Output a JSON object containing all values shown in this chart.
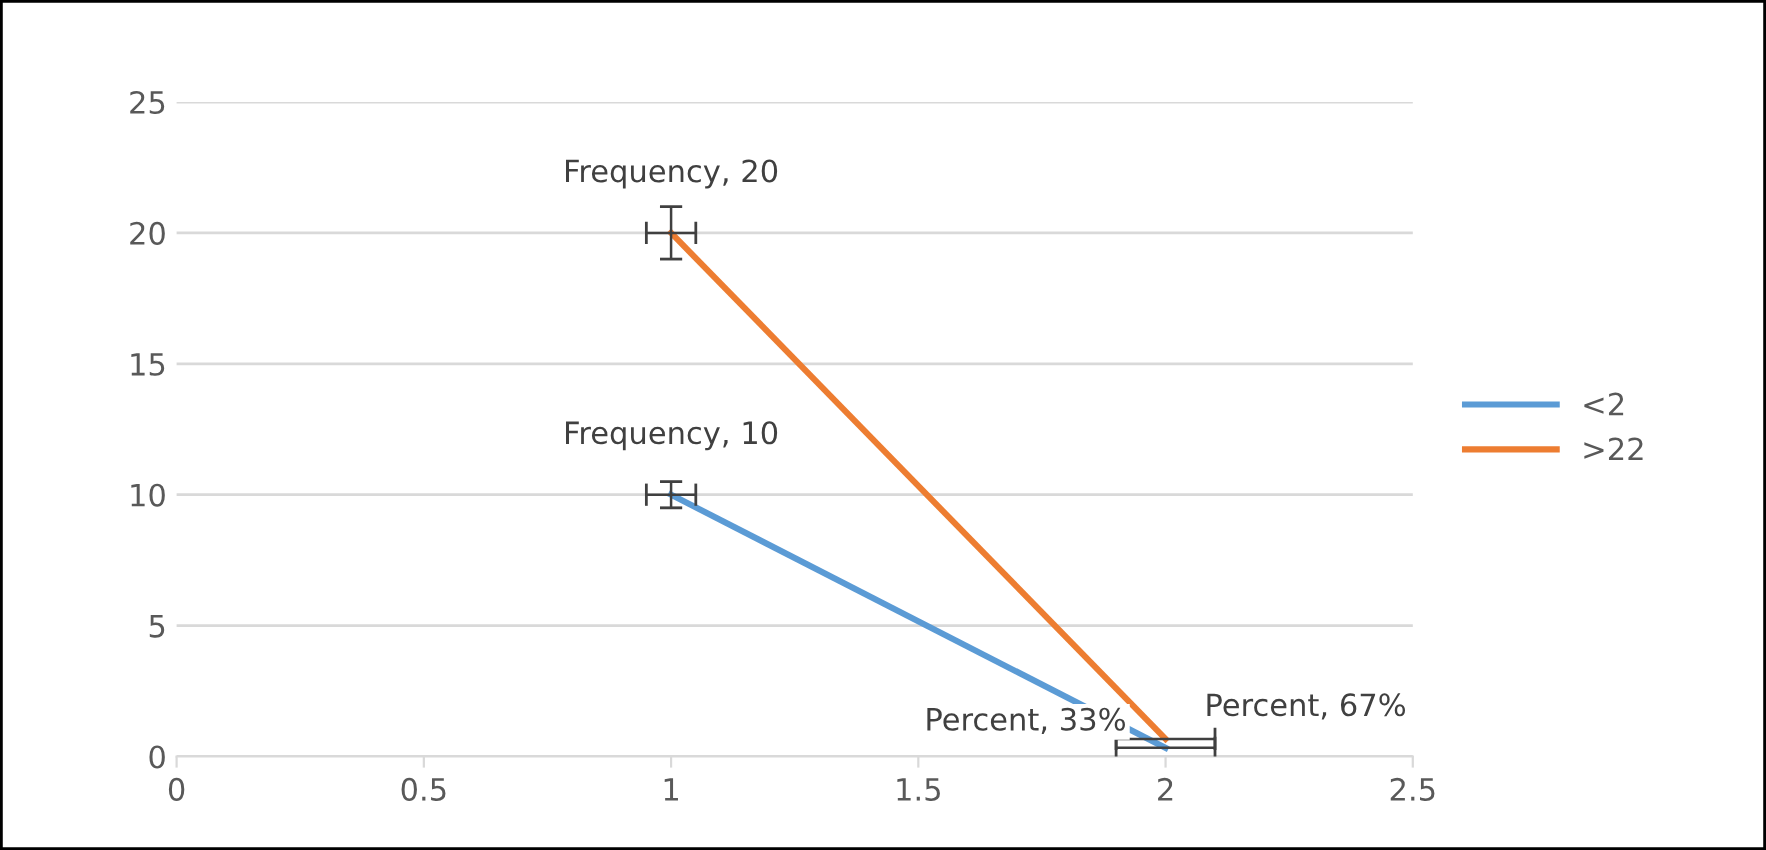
{
  "chart_data": {
    "type": "line",
    "xlim": [
      0,
      2.5
    ],
    "xticks": [
      0,
      0.5,
      1,
      1.5,
      2,
      2.5
    ],
    "x": [
      1,
      2
    ],
    "ylim": [
      0,
      25
    ],
    "yticks": [
      0,
      5,
      10,
      15,
      20,
      25
    ],
    "grid": "y",
    "legend": "right",
    "marker": "none",
    "line_style": "solid",
    "series": [
      {
        "name": "<2",
        "color": "#5b9bd5",
        "values": [
          10,
          0.33
        ],
        "errors": [
          0.5,
          null
        ],
        "xerrors": [
          0.05,
          0.1
        ],
        "value_labels": [
          "Frequency, 10",
          "Percent, 33%"
        ]
      },
      {
        "name": ">22",
        "color": "#ed7d31",
        "values": [
          20,
          0.67
        ],
        "errors": [
          1,
          null
        ],
        "xerrors": [
          0.05,
          0.1
        ],
        "value_labels": [
          "Frequency, 20",
          "Percent, 67%"
        ]
      }
    ]
  }
}
